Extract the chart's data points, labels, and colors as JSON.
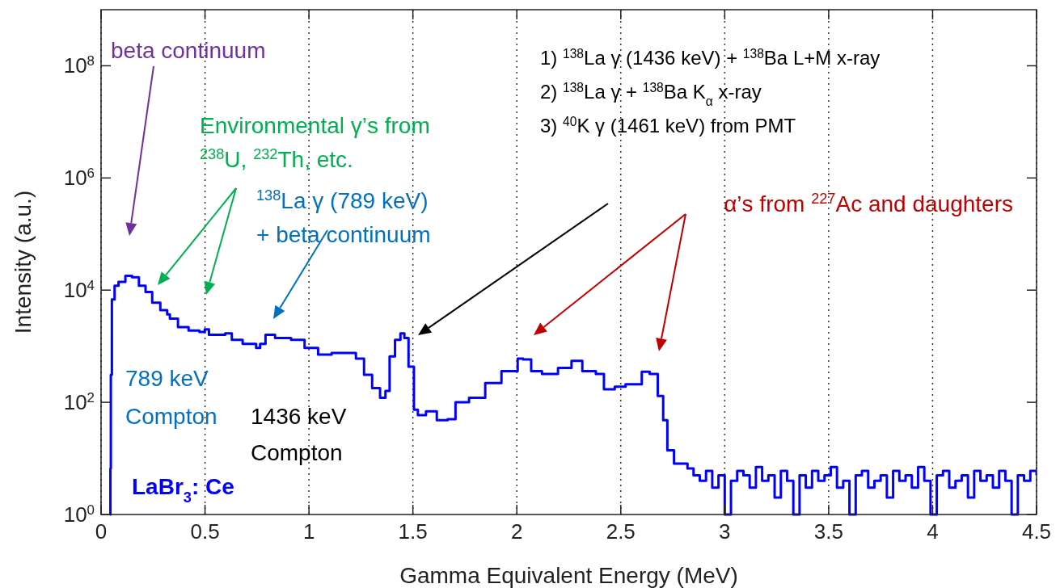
{
  "chart_data": {
    "type": "step",
    "xlabel": "Gamma Equivalent Energy (MeV)",
    "ylabel": "Intensity (a.u.)",
    "x": [
      0.042,
      0.045,
      0.047,
      0.052,
      0.065,
      0.084,
      0.117,
      0.149,
      0.182,
      0.214,
      0.246,
      0.285,
      0.318,
      0.331,
      0.37,
      0.421,
      0.473,
      0.499,
      0.519,
      0.551,
      0.597,
      0.629,
      0.681,
      0.746,
      0.765,
      0.791,
      0.837,
      0.914,
      0.979,
      1.044,
      1.109,
      1.187,
      1.226,
      1.265,
      1.304,
      1.342,
      1.368,
      1.388,
      1.414,
      1.44,
      1.459,
      1.479,
      1.505,
      1.524,
      1.563,
      1.615,
      1.667,
      1.705,
      1.77,
      1.848,
      1.926,
      2.004,
      2.03,
      2.069,
      2.121,
      2.198,
      2.263,
      2.315,
      2.38,
      2.419,
      2.471,
      2.523,
      2.601,
      2.639,
      2.678,
      2.704,
      2.724,
      2.756,
      2.821,
      2.85,
      2.88,
      2.91,
      2.94,
      2.97,
      3.0,
      3.03,
      3.06,
      3.09,
      3.12,
      3.15,
      3.18,
      3.21,
      3.24,
      3.27,
      3.3,
      3.33,
      3.36,
      3.39,
      3.42,
      3.45,
      3.48,
      3.51,
      3.54,
      3.57,
      3.6,
      3.63,
      3.66,
      3.69,
      3.72,
      3.75,
      3.78,
      3.81,
      3.84,
      3.87,
      3.9,
      3.93,
      3.96,
      3.99,
      4.02,
      4.05,
      4.08,
      4.11,
      4.14,
      4.17,
      4.2,
      4.23,
      4.26,
      4.29,
      4.32,
      4.35,
      4.38,
      4.41,
      4.44,
      4.47,
      4.5
    ],
    "series": [
      {
        "color": "#0000ff",
        "values": [
          1,
          6.6,
          310,
          6800,
          12000,
          14000,
          18000,
          17000,
          12000,
          9300,
          6000,
          4400,
          3700,
          3100,
          2200,
          1900,
          1800,
          2000,
          1600,
          1600,
          1700,
          1300,
          1100,
          930,
          1100,
          1600,
          1400,
          1300,
          930,
          710,
          760,
          760,
          600,
          310,
          180,
          120,
          160,
          660,
          1300,
          1700,
          1400,
          430,
          74,
          59,
          69,
          48,
          50,
          100,
          120,
          220,
          360,
          600,
          580,
          360,
          320,
          410,
          550,
          360,
          320,
          170,
          190,
          210,
          350,
          320,
          130,
          48,
          14,
          8.1,
          6.6,
          5,
          4,
          6,
          3,
          5,
          1,
          4,
          6,
          5,
          3,
          7,
          4,
          5,
          2,
          6,
          4,
          1,
          5,
          3,
          6,
          4,
          5,
          7,
          3,
          4,
          1,
          5,
          6,
          3,
          4,
          5,
          2,
          6,
          4,
          5,
          3,
          7,
          4,
          1,
          5,
          6,
          3,
          4,
          5,
          2,
          6,
          4,
          5,
          3,
          6,
          4,
          1,
          5,
          4,
          6,
          5
        ]
      }
    ],
    "xlim": [
      0,
      4.5
    ],
    "xticks": [
      0,
      0.5,
      1,
      1.5,
      2,
      2.5,
      3,
      3.5,
      4,
      4.5
    ],
    "ylim": [
      1,
      1000000000
    ],
    "yticks": [
      {
        "value": 1,
        "label": "10$^{0}$"
      },
      {
        "value": 100,
        "label": "10$^{2}$"
      },
      {
        "value": 10000,
        "label": "10$^{4}$"
      },
      {
        "value": 1000000,
        "label": "10$^{6}$"
      },
      {
        "value": 100000000,
        "label": "10$^{8}$"
      }
    ],
    "log": "y",
    "grid": "x",
    "line_style": "solid",
    "annotations": [
      "beta continuum",
      "Environmental γ’s from",
      "$^{238}$U, $^{232}$Th, etc.",
      "$^{138}$La γ (789 keV)",
      "+ beta continuum",
      "1) $^{138}$La γ (1436 keV) + $^{138}$Ba L+M x-ray",
      "2) $^{138}$La γ + $^{138}$Ba K$_{α}$ x-ray",
      "3) $^{40}$K γ (1461 keV) from PMT",
      "α’s from $^{227}$Ac and daughters",
      "789 keV",
      "Compton",
      "1436 keV",
      "Compton",
      "LaBr$_{3}$: Ce"
    ]
  }
}
